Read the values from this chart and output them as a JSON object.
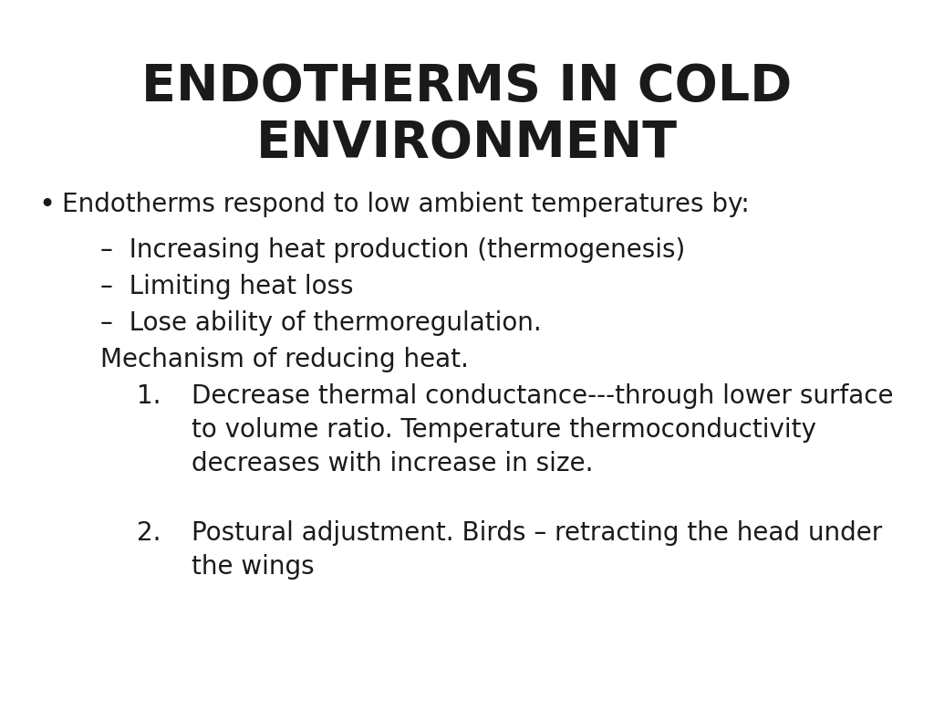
{
  "title_line1": "ENDOTHERMS IN COLD",
  "title_line2": "ENVIRONMENT",
  "background_color": "#ffffff",
  "text_color": "#1a1a1a",
  "title_fontsize": 40,
  "body_fontsize": 20,
  "font_family": "DejaVu Sans",
  "bullet": "•",
  "bullet_text": "Endotherms respond to low ambient temperatures by:",
  "sub_items": [
    "–  Increasing heat production (thermogenesis)",
    "–  Limiting heat loss",
    "–  Lose ability of thermoregulation."
  ],
  "mechanism_label": "Mechanism of reducing heat.",
  "num1_label": "1.",
  "num1_text": "Decrease thermal conductance---through lower surface\nto volume ratio. Temperature thermoconductivity\ndecreases with increase in size.",
  "num2_label": "2.",
  "num2_text": "Postural adjustment. Birds – retracting the head under\nthe wings"
}
